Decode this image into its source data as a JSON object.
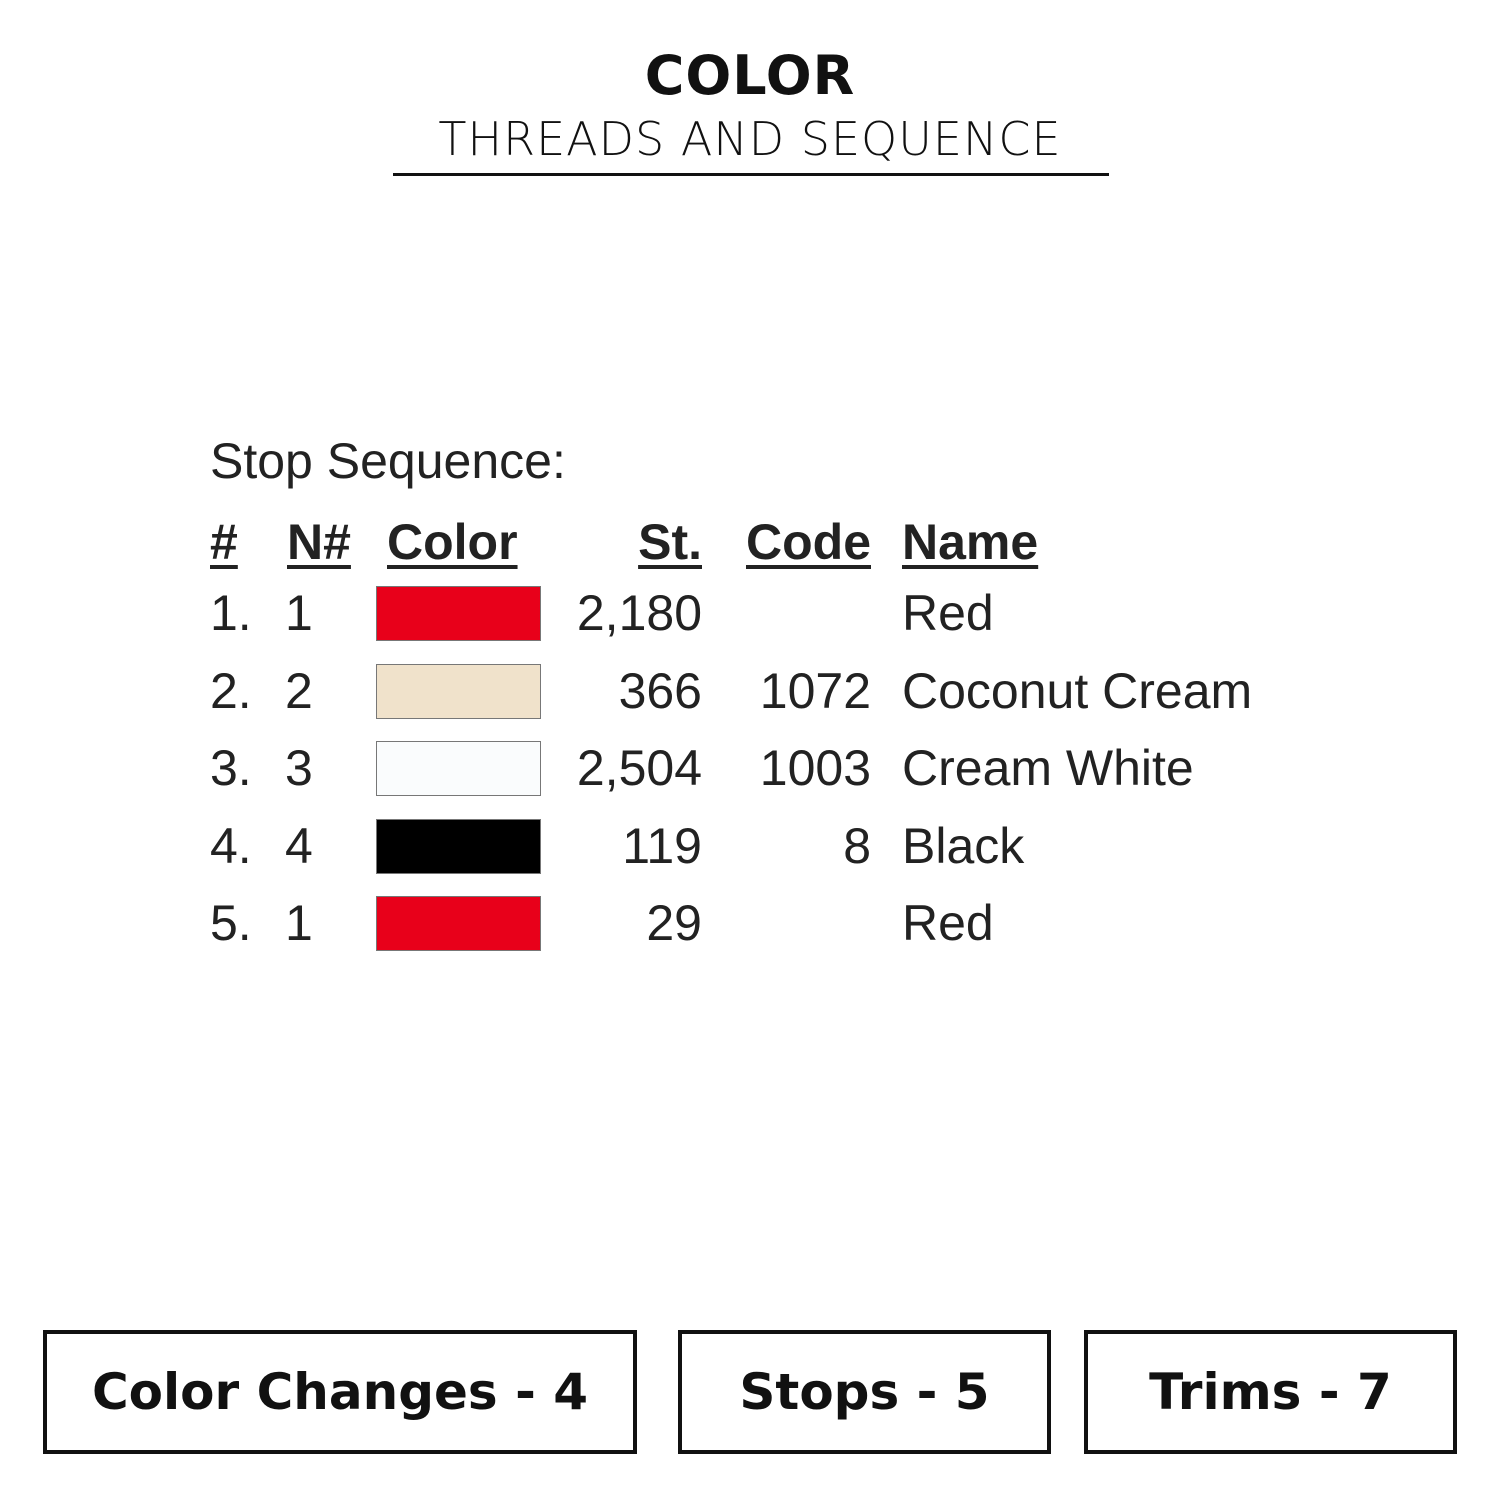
{
  "header": {
    "title": "COLOR",
    "subtitle": "THREADS AND SEQUENCE"
  },
  "sequence": {
    "label": "Stop Sequence:",
    "columns": [
      "#",
      "N#",
      "Color",
      "St.",
      "Code",
      "Name"
    ],
    "rows": [
      {
        "num": "1.",
        "n": "1",
        "color": "#e8001a",
        "stitches": "2,180",
        "code": "",
        "name": "Red"
      },
      {
        "num": "2.",
        "n": "2",
        "color": "#f0e2cb",
        "stitches": "366",
        "code": "1072",
        "name": "Coconut Cream"
      },
      {
        "num": "3.",
        "n": "3",
        "color": "#fafcfd",
        "stitches": "2,504",
        "code": "1003",
        "name": "Cream White"
      },
      {
        "num": "4.",
        "n": "4",
        "color": "#000000",
        "stitches": "119",
        "code": "8",
        "name": "Black"
      },
      {
        "num": "5.",
        "n": "1",
        "color": "#e8001a",
        "stitches": "29",
        "code": "",
        "name": "Red"
      }
    ]
  },
  "stats": {
    "color_changes": "Color Changes - 4",
    "stops": "Stops - 5",
    "trims": "Trims - 7"
  }
}
